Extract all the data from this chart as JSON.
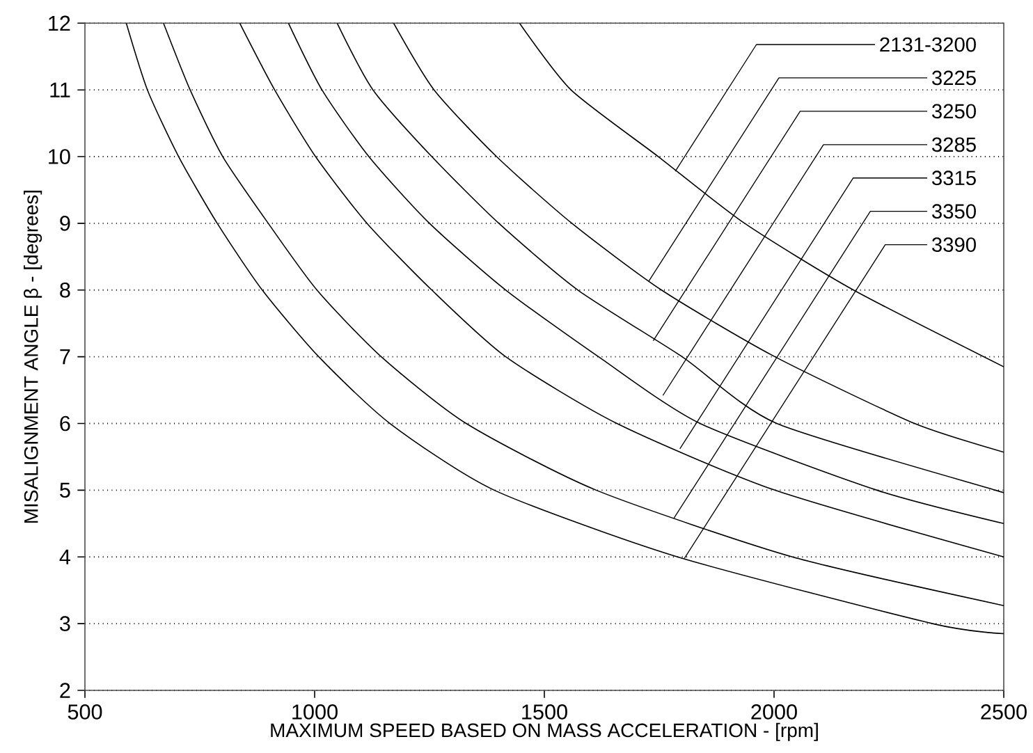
{
  "chart_data": {
    "type": "line",
    "xlabel": "MAXIMUM SPEED BASED ON MASS ACCELERATION - [rpm]",
    "ylabel": "MISALIGNMENT ANGLE β - [degrees]",
    "xlim": [
      500,
      2500
    ],
    "ylim": [
      2,
      12
    ],
    "xticks": [
      500,
      1000,
      1500,
      2000,
      2500
    ],
    "yticks": [
      2,
      3,
      4,
      5,
      6,
      7,
      8,
      9,
      10,
      11,
      12
    ],
    "grid": "y",
    "series": [
      {
        "color": "#000000",
        "x": [
          1446,
          1558,
          1748,
          1936,
          2173,
          2500
        ],
        "values": [
          12,
          11,
          10,
          9,
          8,
          6.85
        ]
      },
      {
        "color": "#000000",
        "x": [
          1172,
          1260,
          1396,
          1560,
          1755,
          2002,
          2306,
          2500
        ],
        "values": [
          12,
          11,
          10,
          9,
          8,
          7,
          6,
          5.57
        ]
      },
      {
        "color": "#000000",
        "x": [
          1049,
          1127,
          1255,
          1401,
          1573,
          1800,
          2006,
          2482,
          2500
        ],
        "values": [
          12,
          11,
          10,
          9,
          8,
          7,
          6,
          5,
          4.97
        ]
      },
      {
        "color": "#000000",
        "x": [
          943,
          1016,
          1118,
          1250,
          1416,
          1618,
          1839,
          2224,
          2500
        ],
        "values": [
          12,
          11,
          10,
          9,
          8,
          7,
          6,
          5,
          4.5
        ]
      },
      {
        "color": "#000000",
        "x": [
          837,
          913,
          1002,
          1114,
          1255,
          1416,
          1658,
          2002,
          2500
        ],
        "values": [
          12,
          11,
          10,
          9,
          8,
          7,
          6,
          5,
          4.0
        ]
      },
      {
        "color": "#000000",
        "x": [
          671,
          729,
          800,
          899,
          1005,
          1145,
          1330,
          1613,
          2040,
          2500
        ],
        "values": [
          12,
          11,
          10,
          9,
          8,
          7,
          6,
          5,
          4,
          3.27
        ]
      },
      {
        "color": "#000000",
        "x": [
          590,
          636,
          704,
          788,
          886,
          1009,
          1164,
          1391,
          1790,
          2345,
          2500
        ],
        "values": [
          12,
          11,
          10,
          9,
          8,
          7,
          6,
          5,
          4,
          3,
          2.85
        ]
      }
    ],
    "annotations": [
      {
        "text": "2131-3200",
        "x": 1785,
        "y": 9.78
      },
      {
        "text": "3225",
        "x": 1727,
        "y": 8.13
      },
      {
        "text": "3250",
        "x": 1737,
        "y": 7.24
      },
      {
        "text": "3285",
        "x": 1758,
        "y": 6.42
      },
      {
        "text": "3315",
        "x": 1795,
        "y": 5.62
      },
      {
        "text": "3350",
        "x": 1782,
        "y": 4.58
      },
      {
        "text": "3390",
        "x": 1805,
        "y": 3.98
      }
    ]
  }
}
